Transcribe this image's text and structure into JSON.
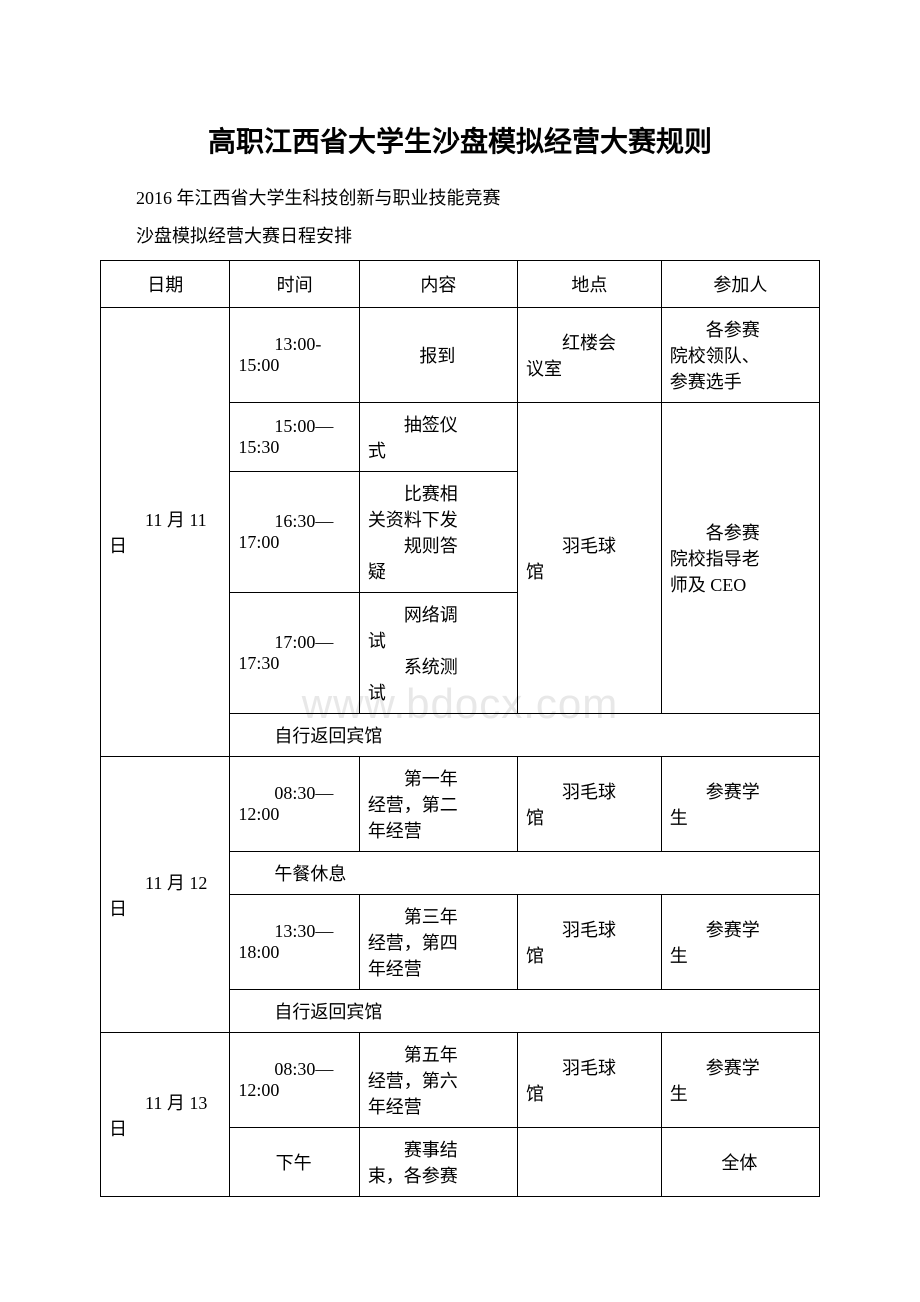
{
  "watermark": "www.bdocx.com",
  "title": "高职江西省大学生沙盘模拟经营大赛规则",
  "subtitle1": "2016 年江西省大学生科技创新与职业技能竞赛",
  "subtitle2": "沙盘模拟经营大赛日程安排",
  "headers": {
    "date": "日期",
    "time": "时间",
    "content": "内容",
    "location": "地点",
    "people": "参加人"
  },
  "day1": {
    "date": "11 月 11日",
    "r1": {
      "time_l1": "13:00-",
      "time_l2": "15:00",
      "content": "报到",
      "loc_l1": "红楼会",
      "loc_l2": "议室",
      "people_l1": "各参赛",
      "people_l2": "院校领队、",
      "people_l3": "参赛选手"
    },
    "r2": {
      "time_l1": "15:00—",
      "time_l2": "15:30",
      "content_l1": "抽签仪",
      "content_l2": "式"
    },
    "r3": {
      "time_l1": "16:30—",
      "time_l2": "17:00",
      "content_l1": "比赛相",
      "content_l2": "关资料下发",
      "content_l3": "规则答",
      "content_l4": "疑"
    },
    "loc_g2": {
      "l1": "羽毛球",
      "l2": "馆"
    },
    "people_g2": {
      "l1": "各参赛",
      "l2": "院校指导老",
      "l3": "师及 CEO"
    },
    "r4": {
      "time_l1": "17:00—",
      "time_l2": "17:30",
      "content_l1": "网络调",
      "content_l2": "试",
      "content_l3": "系统测",
      "content_l4": "试"
    },
    "return": "自行返回宾馆"
  },
  "day2": {
    "date": "11 月 12日",
    "r1": {
      "time_l1": "08:30—",
      "time_l2": "12:00",
      "content_l1": "第一年",
      "content_l2": "经营，第二",
      "content_l3": "年经营",
      "loc_l1": "羽毛球",
      "loc_l2": "馆",
      "people_l1": "参赛学",
      "people_l2": "生"
    },
    "lunch": "午餐休息",
    "r2": {
      "time_l1": "13:30—",
      "time_l2": "18:00",
      "content_l1": "第三年",
      "content_l2": "经营，第四",
      "content_l3": "年经营",
      "loc_l1": "羽毛球",
      "loc_l2": "馆",
      "people_l1": "参赛学",
      "people_l2": "生"
    },
    "return": "自行返回宾馆"
  },
  "day3": {
    "date": "11 月 13日",
    "r1": {
      "time_l1": "08:30—",
      "time_l2": "12:00",
      "content_l1": "第五年",
      "content_l2": "经营，第六",
      "content_l3": "年经营",
      "loc_l1": "羽毛球",
      "loc_l2": "馆",
      "people_l1": "参赛学",
      "people_l2": "生"
    },
    "r2": {
      "time": "下午",
      "content_l1": "赛事结",
      "content_l2": "束，各参赛",
      "people": "全体"
    }
  }
}
